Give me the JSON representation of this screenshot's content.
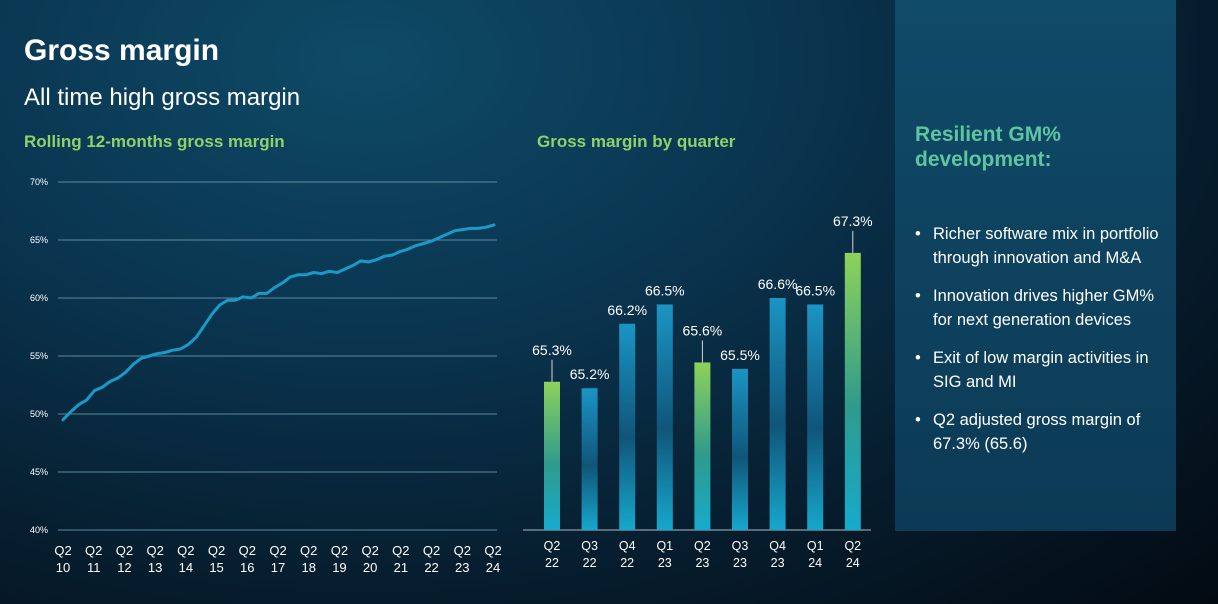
{
  "header": {
    "title": "Gross margin",
    "subtitle": "All time high gross margin"
  },
  "panel": {
    "title": "Resilient GM% development:",
    "bullets": [
      "Richer software mix in portfolio through innovation and M&A",
      "Innovation drives higher GM% for next generation devices",
      "Exit of low margin activities in SIG and MI",
      "Q2 adjusted gross margin of 67.3% (65.6)"
    ]
  },
  "colors": {
    "line": "#1a9ac9",
    "bar_blue": "#1a8ab8",
    "bar_green": "#7cc850",
    "title_green": "#8fd16a",
    "panel_title": "#5fc4a0"
  },
  "chart_data": [
    {
      "type": "line",
      "title": "Rolling 12-months gross margin",
      "ylim": [
        40,
        70
      ],
      "yticks": [
        "40%",
        "45%",
        "50%",
        "55%",
        "60%",
        "65%",
        "70%"
      ],
      "ytick_values": [
        40,
        45,
        50,
        55,
        60,
        65,
        70
      ],
      "xtick_labels": [
        [
          "Q2",
          "10"
        ],
        [
          "Q2",
          "11"
        ],
        [
          "Q2",
          "12"
        ],
        [
          "Q2",
          "13"
        ],
        [
          "Q2",
          "14"
        ],
        [
          "Q2",
          "15"
        ],
        [
          "Q2",
          "16"
        ],
        [
          "Q2",
          "17"
        ],
        [
          "Q2",
          "18"
        ],
        [
          "Q2",
          "19"
        ],
        [
          "Q2",
          "20"
        ],
        [
          "Q2",
          "21"
        ],
        [
          "Q2",
          "22"
        ],
        [
          "Q2",
          "23"
        ],
        [
          "Q2",
          "24"
        ]
      ],
      "grid": true,
      "series": [
        {
          "name": "Rolling 12-months gross margin",
          "values": [
            49.5,
            50.2,
            50.8,
            51.2,
            52.0,
            52.3,
            52.8,
            53.1,
            53.6,
            54.3,
            54.8,
            55.0,
            55.2,
            55.3,
            55.5,
            55.6,
            56.0,
            56.6,
            57.6,
            58.6,
            59.4,
            59.8,
            59.8,
            60.1,
            60.0,
            60.4,
            60.4,
            60.9,
            61.3,
            61.8,
            62.0,
            62.0,
            62.2,
            62.1,
            62.3,
            62.2,
            62.5,
            62.8,
            63.2,
            63.1,
            63.3,
            63.6,
            63.7,
            64.0,
            64.2,
            64.5,
            64.7,
            64.9,
            65.2,
            65.5,
            65.8,
            65.9,
            66.0,
            66.0,
            66.1,
            66.3
          ]
        }
      ]
    },
    {
      "type": "bar",
      "title": "Gross margin by quarter",
      "categories": [
        [
          "Q2",
          "22"
        ],
        [
          "Q3",
          "22"
        ],
        [
          "Q4",
          "22"
        ],
        [
          "Q1",
          "23"
        ],
        [
          "Q2",
          "23"
        ],
        [
          "Q3",
          "23"
        ],
        [
          "Q4",
          "23"
        ],
        [
          "Q1",
          "24"
        ],
        [
          "Q2",
          "24"
        ]
      ],
      "values": [
        65.3,
        65.2,
        66.2,
        66.5,
        65.6,
        65.5,
        66.6,
        66.5,
        67.3
      ],
      "labels": [
        "65.3%",
        "65.2%",
        "66.2%",
        "66.5%",
        "65.6%",
        "65.5%",
        "66.6%",
        "66.5%",
        "67.3%"
      ],
      "highlight": [
        true,
        false,
        false,
        false,
        true,
        false,
        false,
        false,
        true
      ],
      "ylim": [
        63.0,
        67.5
      ]
    }
  ]
}
